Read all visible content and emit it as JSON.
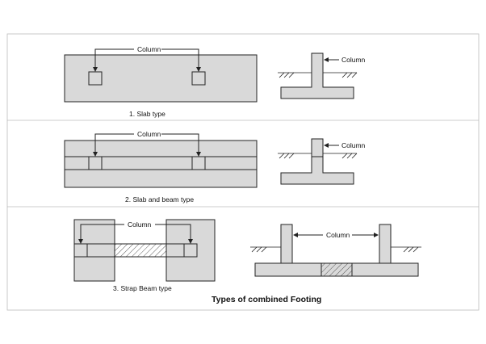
{
  "labels": {
    "column": "Column"
  },
  "captions": {
    "slab_type": "1. Slab type",
    "slab_beam_type": "2. Slab and beam type",
    "strap_beam_type": "3. Strap Beam type"
  },
  "title": "Types of combined Footing",
  "colors": {
    "fill": "#d9d9d9",
    "stroke": "#222222",
    "background": "#ffffff"
  }
}
